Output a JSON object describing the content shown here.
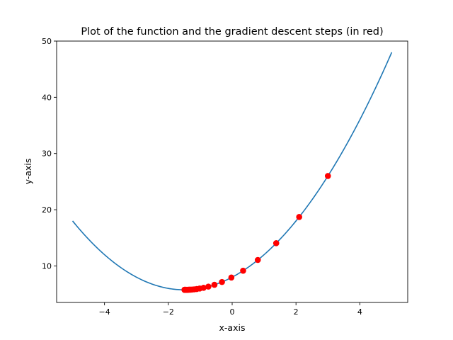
{
  "chart_data": {
    "type": "line",
    "title": "Plot of the function and the gradient descent steps (in red)",
    "xlabel": "x-axis",
    "ylabel": "y-axis",
    "xlim": [
      -5.5,
      5.5
    ],
    "ylim": [
      3.5,
      50
    ],
    "grid": false,
    "x_ticks": [
      -4,
      -2,
      0,
      2,
      4
    ],
    "x_tick_labels": [
      "−4",
      "−2",
      "0",
      "2",
      "4"
    ],
    "y_ticks": [
      10,
      20,
      30,
      40,
      50
    ],
    "y_tick_labels": [
      "10",
      "20",
      "30",
      "40",
      "50"
    ],
    "series": [
      {
        "function": "x^2 + 3x + 8",
        "x_range": [
          -5,
          5
        ],
        "color": "#1f77b4",
        "style": "line"
      },
      {
        "color": "#ff0000",
        "style": "markers",
        "points": [
          {
            "x": 3.0,
            "y": 26.0
          },
          {
            "x": 2.1,
            "y": 18.71
          },
          {
            "x": 1.38,
            "y": 14.04
          },
          {
            "x": 0.804,
            "y": 11.06
          },
          {
            "x": 0.343,
            "y": 9.15
          },
          {
            "x": -0.025,
            "y": 7.93
          },
          {
            "x": -0.32,
            "y": 7.14
          },
          {
            "x": -0.556,
            "y": 6.64
          },
          {
            "x": -0.745,
            "y": 6.32
          },
          {
            "x": -0.896,
            "y": 6.11
          },
          {
            "x": -1.017,
            "y": 5.98
          },
          {
            "x": -1.113,
            "y": 5.89
          },
          {
            "x": -1.191,
            "y": 5.83
          },
          {
            "x": -1.253,
            "y": 5.8
          },
          {
            "x": -1.302,
            "y": 5.78
          },
          {
            "x": -1.342,
            "y": 5.77
          },
          {
            "x": -1.373,
            "y": 5.76
          },
          {
            "x": -1.399,
            "y": 5.75
          },
          {
            "x": -1.419,
            "y": 5.751
          },
          {
            "x": -1.435,
            "y": 5.7504
          },
          {
            "x": -1.448,
            "y": 5.7503
          },
          {
            "x": -1.458,
            "y": 5.7502
          },
          {
            "x": -1.467,
            "y": 5.7501
          },
          {
            "x": -1.473,
            "y": 5.7501
          },
          {
            "x": -1.479,
            "y": 5.75
          },
          {
            "x": -1.483,
            "y": 5.75
          },
          {
            "x": -1.486,
            "y": 5.75
          },
          {
            "x": -1.489,
            "y": 5.75
          },
          {
            "x": -1.491,
            "y": 5.75
          },
          {
            "x": -1.493,
            "y": 5.75
          }
        ]
      }
    ]
  }
}
